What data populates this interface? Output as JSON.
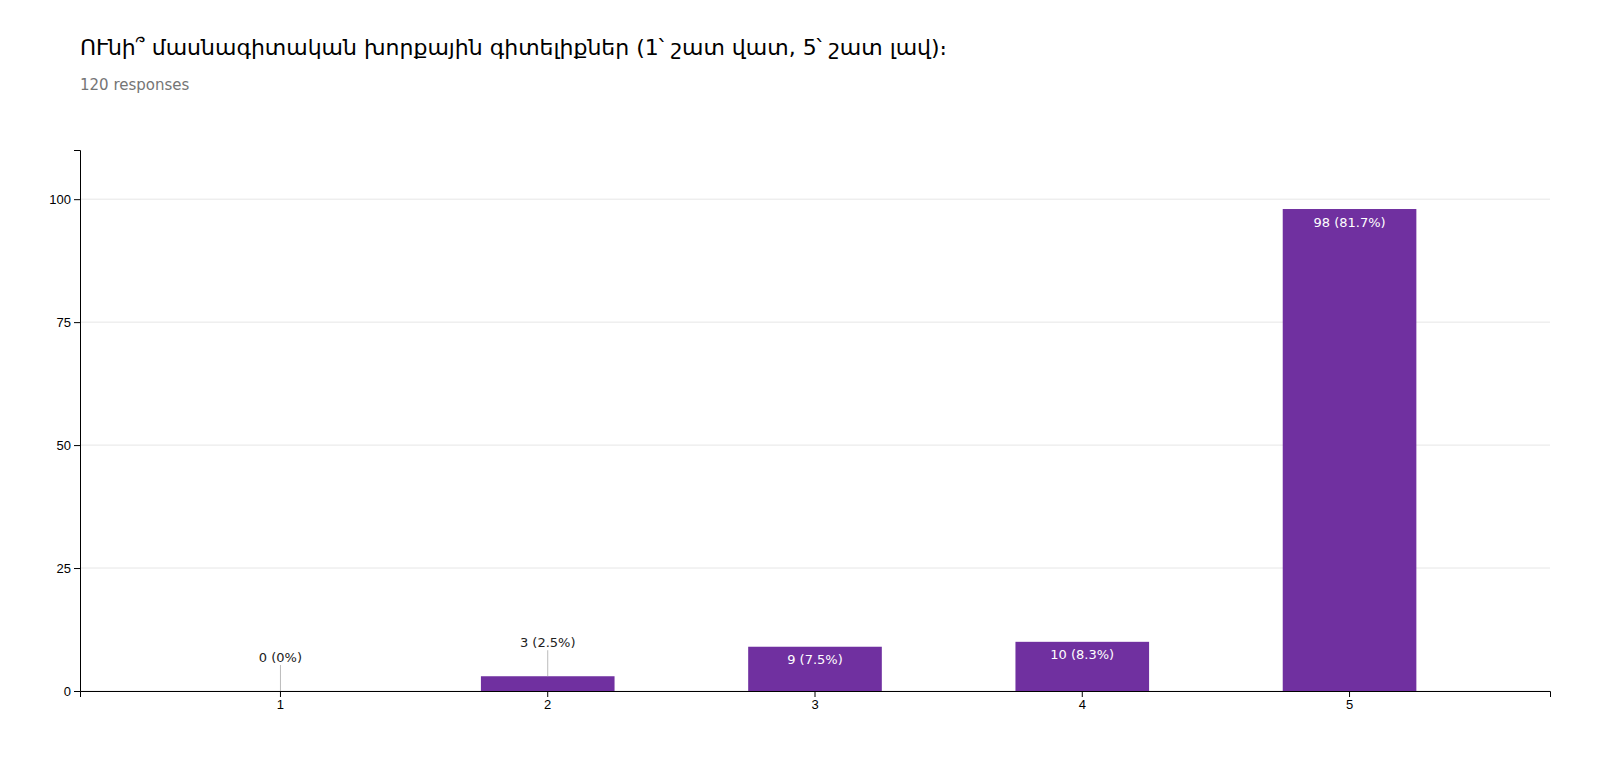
{
  "chart_data": {
    "type": "bar",
    "title": "ՈՒնի՞ մասնագիտական խորքային գիտելիքներ (1՝ շատ վատ, 5՝ շատ լավ)։",
    "subtitle": "120 responses",
    "categories": [
      "1",
      "2",
      "3",
      "4",
      "5"
    ],
    "values": [
      0,
      3,
      9,
      10,
      98
    ],
    "value_labels": [
      "0 (0%)",
      "3 (2.5%)",
      "9 (7.5%)",
      "10 (8.3%)",
      "98 (81.7%)"
    ],
    "color": "#7030A0",
    "ylim": [
      0,
      110
    ],
    "yticks": [
      0,
      25,
      50,
      75,
      100
    ],
    "grid": true
  }
}
